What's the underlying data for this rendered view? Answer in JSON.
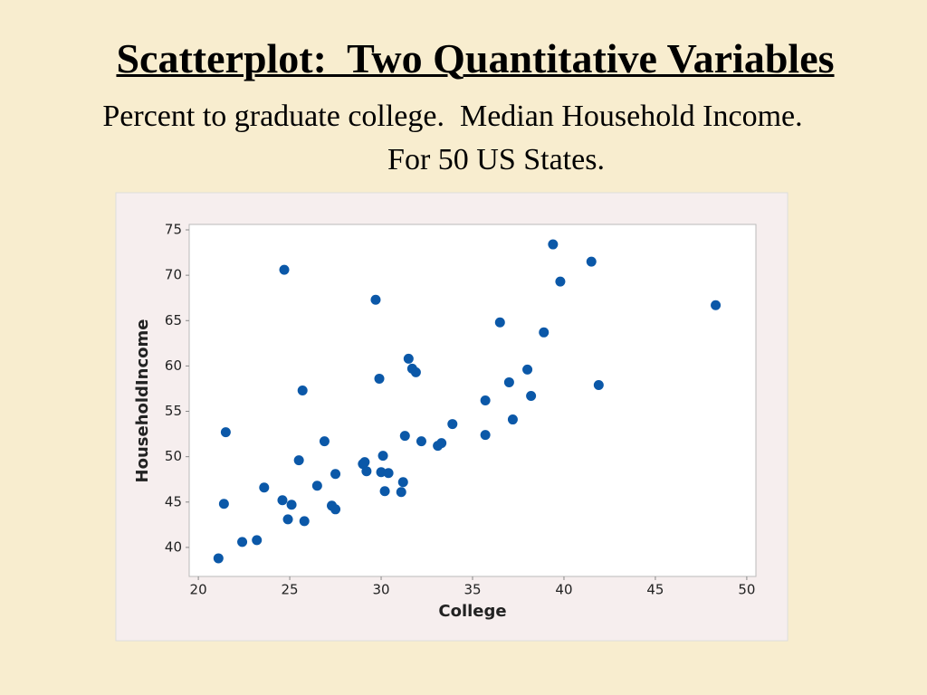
{
  "chart_data": {
    "type": "scatter",
    "title": "Scatterplot:  Two Quantitative Variables",
    "subtitle": [
      "Percent to graduate college.  Median Household Income.",
      "For 50 US States."
    ],
    "x_label": "College",
    "y_label": "HouseholdIncome",
    "color": "#0b58a8",
    "xlim": [
      19.5,
      50.5
    ],
    "ylim": [
      36.8,
      75.6
    ],
    "xticks": [
      20,
      25,
      30,
      35,
      40,
      45,
      50
    ],
    "yticks": [
      40,
      45,
      50,
      55,
      60,
      65,
      70,
      75
    ],
    "x": [
      21.1,
      21.4,
      21.5,
      22.4,
      23.2,
      23.6,
      24.6,
      24.7,
      24.9,
      25.1,
      25.5,
      25.7,
      25.8,
      26.5,
      26.9,
      27.3,
      27.5,
      27.5,
      29.0,
      29.2,
      29.1,
      29.7,
      29.9,
      30.0,
      30.1,
      30.4,
      30.2,
      31.1,
      31.2,
      31.3,
      31.5,
      31.7,
      31.9,
      32.2,
      33.1,
      33.3,
      33.9,
      35.7,
      35.7,
      36.5,
      37.0,
      37.2,
      38.0,
      38.2,
      38.9,
      39.4,
      39.8,
      41.5,
      41.9,
      48.3
    ],
    "values": [
      38.8,
      44.8,
      52.7,
      40.6,
      40.8,
      46.6,
      45.2,
      70.6,
      43.1,
      44.7,
      49.6,
      57.3,
      42.9,
      46.8,
      51.7,
      44.6,
      48.1,
      44.2,
      49.2,
      48.4,
      49.4,
      67.3,
      58.6,
      48.3,
      50.1,
      48.2,
      46.2,
      46.1,
      47.2,
      52.3,
      60.8,
      59.7,
      59.3,
      51.7,
      51.2,
      51.5,
      53.6,
      52.4,
      56.2,
      64.8,
      58.2,
      54.1,
      59.6,
      56.7,
      63.7,
      73.4,
      69.3,
      71.5,
      57.9,
      66.7
    ]
  }
}
